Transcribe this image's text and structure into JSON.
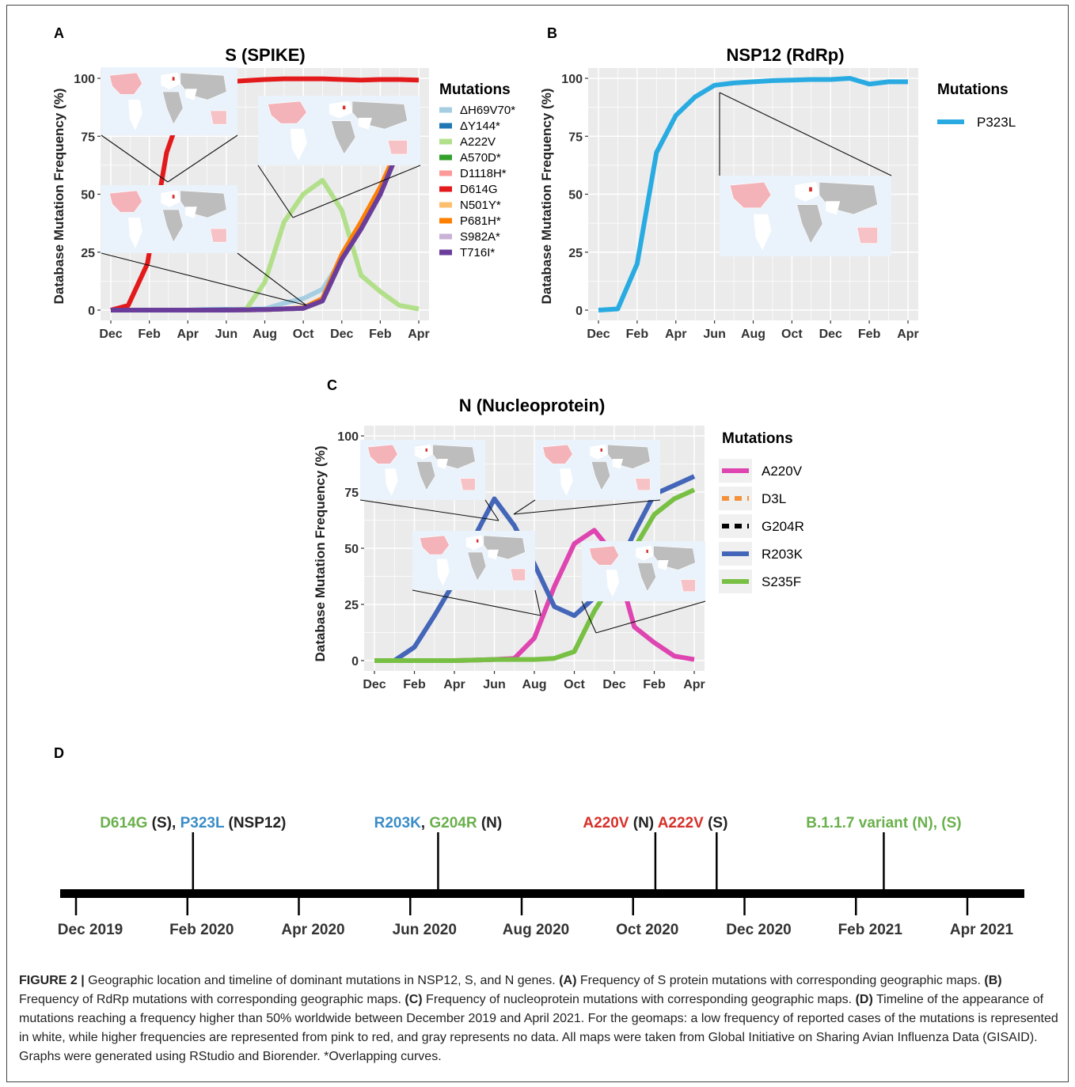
{
  "chart_data": [
    {
      "panel": "A",
      "type": "line",
      "title": "S (SPIKE)",
      "xlabel": "",
      "ylabel": "Database Mutation Frequency (%)",
      "ylim": [
        0,
        100
      ],
      "yticks": [
        0,
        25,
        50,
        75,
        100
      ],
      "xticks": [
        "Dec",
        "Feb",
        "Apr",
        "Jun",
        "Aug",
        "Oct",
        "Dec",
        "Feb",
        "Apr"
      ],
      "grid": true,
      "legend_title": "Mutations",
      "legend_position": "right",
      "series": [
        {
          "name": "ΔH69V70*",
          "color": "#a6cee3",
          "x": [
            0,
            2,
            4,
            6,
            8,
            9,
            10,
            11,
            12,
            13,
            14,
            15,
            16
          ],
          "y": [
            0,
            0,
            0,
            0.2,
            0.5,
            3,
            5,
            9,
            22,
            35,
            50,
            70,
            77
          ]
        },
        {
          "name": "ΔY144*",
          "color": "#1f78b4",
          "x": [
            0,
            2,
            4,
            6,
            8,
            9,
            10,
            11,
            12,
            13,
            14,
            15,
            16
          ],
          "y": [
            0,
            0,
            0,
            0.2,
            0.3,
            0.5,
            0.8,
            4,
            22,
            35,
            50,
            70,
            75
          ]
        },
        {
          "name": "A222V",
          "color": "#b2df8a",
          "x": [
            7,
            8,
            9,
            10,
            11,
            12,
            13,
            14,
            15,
            16
          ],
          "y": [
            0,
            12,
            38,
            50,
            56,
            43,
            15,
            8,
            2,
            0.5
          ]
        },
        {
          "name": "A570D*",
          "color": "#33a02c",
          "x": [
            0,
            2,
            4,
            6,
            8,
            9,
            10,
            11,
            12,
            13,
            14,
            15,
            16
          ],
          "y": [
            0,
            0,
            0,
            0,
            0.2,
            0.5,
            0.8,
            4,
            22,
            35,
            50,
            70,
            76
          ]
        },
        {
          "name": "D1118H*",
          "color": "#fb9a99",
          "x": [
            0,
            2,
            4,
            6,
            8,
            9,
            10,
            11,
            12,
            13,
            14,
            15,
            16
          ],
          "y": [
            0,
            0,
            0,
            0,
            0.2,
            0.5,
            0.8,
            4,
            22,
            35,
            50,
            70,
            76
          ]
        },
        {
          "name": "D614G",
          "color": "#e31a1c",
          "x": [
            0,
            0.9,
            1.9,
            2.9,
            3.4,
            4.2,
            5,
            6,
            7,
            8,
            9,
            10,
            11,
            12,
            13,
            14,
            15,
            16
          ],
          "y": [
            0,
            2,
            20,
            68,
            80,
            93,
            97,
            98.5,
            99,
            99.5,
            99.8,
            99.8,
            99.8,
            99.5,
            99.2,
            99.5,
            99.5,
            99.2
          ]
        },
        {
          "name": "N501Y*",
          "color": "#fdbf6f",
          "x": [
            0,
            2,
            4,
            6,
            8,
            9,
            10,
            11,
            12,
            13,
            14,
            15,
            16
          ],
          "y": [
            0,
            0,
            0,
            0,
            0.2,
            0.5,
            0.8,
            5,
            24,
            38,
            53,
            72,
            80
          ]
        },
        {
          "name": "P681H*",
          "color": "#ff7f00",
          "x": [
            0,
            2,
            4,
            6,
            8,
            9,
            10,
            11,
            12,
            13,
            14,
            15,
            16
          ],
          "y": [
            0,
            0,
            0,
            0,
            0.2,
            0.5,
            1,
            5,
            24,
            38,
            53,
            71,
            78
          ]
        },
        {
          "name": "S982A*",
          "color": "#cab2d6",
          "x": [
            0,
            2,
            4,
            6,
            8,
            9,
            10,
            11,
            12,
            13,
            14,
            15,
            16
          ],
          "y": [
            0,
            0,
            0,
            0,
            0.2,
            0.5,
            0.8,
            4,
            22,
            35,
            50,
            70,
            76
          ]
        },
        {
          "name": "T716I*",
          "color": "#6a3d9a",
          "x": [
            0,
            2,
            4,
            6,
            8,
            9,
            10,
            11,
            12,
            13,
            14,
            15,
            16
          ],
          "y": [
            0,
            0,
            0,
            0,
            0.2,
            0.5,
            0.8,
            4,
            22,
            35,
            50,
            70,
            75
          ]
        }
      ]
    },
    {
      "panel": "B",
      "type": "line",
      "title": "NSP12 (RdRp)",
      "xlabel": "",
      "ylabel": "Database Mutation Frequency (%)",
      "ylim": [
        0,
        100
      ],
      "yticks": [
        0,
        25,
        50,
        75,
        100
      ],
      "xticks": [
        "Dec",
        "Feb",
        "Apr",
        "Jun",
        "Aug",
        "Oct",
        "Dec",
        "Feb",
        "Apr"
      ],
      "grid": true,
      "legend_title": "Mutations",
      "legend_position": "right",
      "series": [
        {
          "name": "P323L",
          "color": "#29abe2",
          "x": [
            0,
            1,
            2,
            3,
            4,
            5,
            6,
            7,
            8,
            9,
            10,
            11,
            12,
            13,
            14,
            15,
            16
          ],
          "y": [
            0,
            0.5,
            20,
            68,
            84,
            92,
            97,
            98,
            98.5,
            99,
            99.2,
            99.5,
            99.5,
            100,
            97.5,
            98.5,
            98.5
          ]
        }
      ]
    },
    {
      "panel": "C",
      "type": "line",
      "title": "N (Nucleoprotein)",
      "xlabel": "",
      "ylabel": "Database Mutation Frequency (%)",
      "ylim": [
        0,
        100
      ],
      "yticks": [
        0,
        25,
        50,
        75,
        100
      ],
      "xticks": [
        "Dec",
        "Feb",
        "Apr",
        "Jun",
        "Aug",
        "Oct",
        "Dec",
        "Feb",
        "Apr"
      ],
      "grid": true,
      "legend_title": "Mutations",
      "legend_position": "right",
      "series": [
        {
          "name": "A220V",
          "color": "#de45b0",
          "x": [
            0,
            1,
            2,
            3,
            4,
            5,
            6,
            6.7,
            7,
            8,
            9,
            10,
            11,
            12,
            13,
            14,
            15,
            16
          ],
          "y": [
            0,
            0,
            0,
            0,
            0,
            0.2,
            0.5,
            0.8,
            1,
            10,
            33,
            52,
            58,
            47,
            15,
            8,
            2,
            0.5
          ],
          "style": "solid"
        },
        {
          "name": "D3L",
          "color": "#f4923a",
          "x": [
            0,
            1,
            2,
            3,
            4,
            5,
            6,
            7,
            8,
            9,
            10,
            11,
            12,
            13,
            14,
            15,
            16
          ],
          "y": [
            0,
            0,
            0,
            0,
            0,
            0.2,
            0.5,
            0.5,
            0.5,
            1,
            4,
            22,
            36,
            50,
            65,
            72,
            76
          ],
          "style": "dashed"
        },
        {
          "name": "G204R",
          "color": "#000000",
          "x": [
            0,
            1,
            2,
            3,
            4,
            5,
            6,
            7,
            8,
            9,
            10,
            11,
            12,
            13,
            14,
            15,
            16
          ],
          "y": [
            0,
            0,
            6,
            20,
            35,
            55,
            72,
            60,
            43,
            24,
            20,
            28,
            38,
            57,
            74,
            78,
            82
          ],
          "style": "dashed"
        },
        {
          "name": "R203K",
          "color": "#4466b9",
          "x": [
            0,
            1,
            2,
            3,
            4,
            5,
            6,
            7,
            8,
            9,
            10,
            11,
            12,
            13,
            14,
            15,
            16
          ],
          "y": [
            0,
            0,
            6,
            20,
            35,
            55,
            72,
            60,
            43,
            24,
            20,
            28,
            38,
            57,
            74,
            78,
            82
          ],
          "style": "solid"
        },
        {
          "name": "S235F",
          "color": "#77c043",
          "x": [
            0,
            1,
            2,
            3,
            4,
            5,
            6,
            7,
            8,
            9,
            10,
            11,
            12,
            13,
            14,
            15,
            16
          ],
          "y": [
            0,
            0,
            0,
            0,
            0,
            0.2,
            0.5,
            0.5,
            0.5,
            1,
            4,
            22,
            36,
            50,
            65,
            72,
            76
          ],
          "style": "solid"
        }
      ]
    }
  ],
  "panels": {
    "A": {
      "letter": "A"
    },
    "B": {
      "letter": "B"
    },
    "C": {
      "letter": "C"
    },
    "D": {
      "letter": "D"
    }
  },
  "timeline": {
    "dates": [
      {
        "label": "Dec 2019",
        "pos": 0
      },
      {
        "label": "Feb 2020",
        "pos": 2
      },
      {
        "label": "Apr 2020",
        "pos": 4
      },
      {
        "label": "Jun 2020",
        "pos": 6
      },
      {
        "label": "Aug 2020",
        "pos": 8
      },
      {
        "label": "Oct 2020",
        "pos": 10
      },
      {
        "label": "Dec 2020",
        "pos": 12
      },
      {
        "label": "Feb 2021",
        "pos": 14
      },
      {
        "label": "Apr 2021",
        "pos": 16
      }
    ],
    "events": [
      {
        "pos": 2.1,
        "parts": [
          {
            "t": "D614G",
            "c": "#6ab04c"
          },
          {
            "t": " (S), ",
            "c": "#222222"
          },
          {
            "t": "P323L",
            "c": "#3a8dc8"
          },
          {
            "t": " (NSP12)",
            "c": "#222222"
          }
        ]
      },
      {
        "pos": 6.5,
        "parts": [
          {
            "t": "R203K",
            "c": "#3a8dc8"
          },
          {
            "t": ", ",
            "c": "#222222"
          },
          {
            "t": "G204R",
            "c": "#6ab04c"
          },
          {
            "t": " (N)",
            "c": "#222222"
          }
        ]
      },
      {
        "pos": 10.4,
        "parts": [
          {
            "t": "A220V",
            "c": "#d6312b"
          },
          {
            "t": " (N) ",
            "c": "#222222"
          },
          {
            "t": "A222V",
            "c": "#d6312b"
          },
          {
            "t": " (S)",
            "c": "#222222"
          }
        ]
      },
      {
        "pos": 11.5,
        "parts": []
      },
      {
        "pos": 14.5,
        "parts": [
          {
            "t": "B.1.1.7 variant (N), (S)",
            "c": "#6ab04c"
          }
        ]
      }
    ]
  },
  "caption": {
    "lead": "FIGURE 2 |",
    "segments": [
      {
        "b": false,
        "t": " Geographic location and timeline of dominant mutations in NSP12, S, and N genes. "
      },
      {
        "b": true,
        "t": "(A)"
      },
      {
        "b": false,
        "t": " Frequency of S protein mutations with corresponding geographic maps. "
      },
      {
        "b": true,
        "t": "(B)"
      },
      {
        "b": false,
        "t": " Frequency of RdRp mutations with corresponding geographic maps. "
      },
      {
        "b": true,
        "t": "(C)"
      },
      {
        "b": false,
        "t": " Frequency of nucleoprotein mutations with corresponding geographic maps. "
      },
      {
        "b": true,
        "t": "(D)"
      },
      {
        "b": false,
        "t": " Timeline of the appearance of mutations reaching a frequency higher than 50% worldwide between December 2019 and April 2021. For the geomaps: a low frequency of reported cases of the mutations is represented in white, while higher frequencies are represented from pink to red, and gray represents no data. All maps were taken from Global Initiative on Sharing Avian Influenza Data (GISAID). Graphs were generated using RStudio and Biorender. *Overlapping curves."
      }
    ]
  }
}
